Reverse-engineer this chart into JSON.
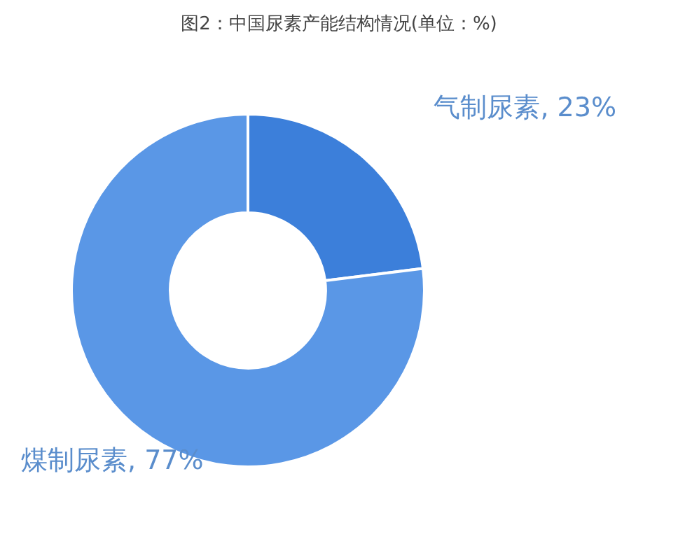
{
  "chart_data": {
    "type": "donut",
    "title": "图2：中国尿素产能结构情况(单位：%)",
    "categories": [
      "气制尿素",
      "煤制尿素"
    ],
    "values": [
      23,
      77
    ],
    "colors": [
      "#3c7fda",
      "#5a97e6"
    ],
    "value_labels": [
      "23%",
      "77%"
    ],
    "legend": false
  }
}
